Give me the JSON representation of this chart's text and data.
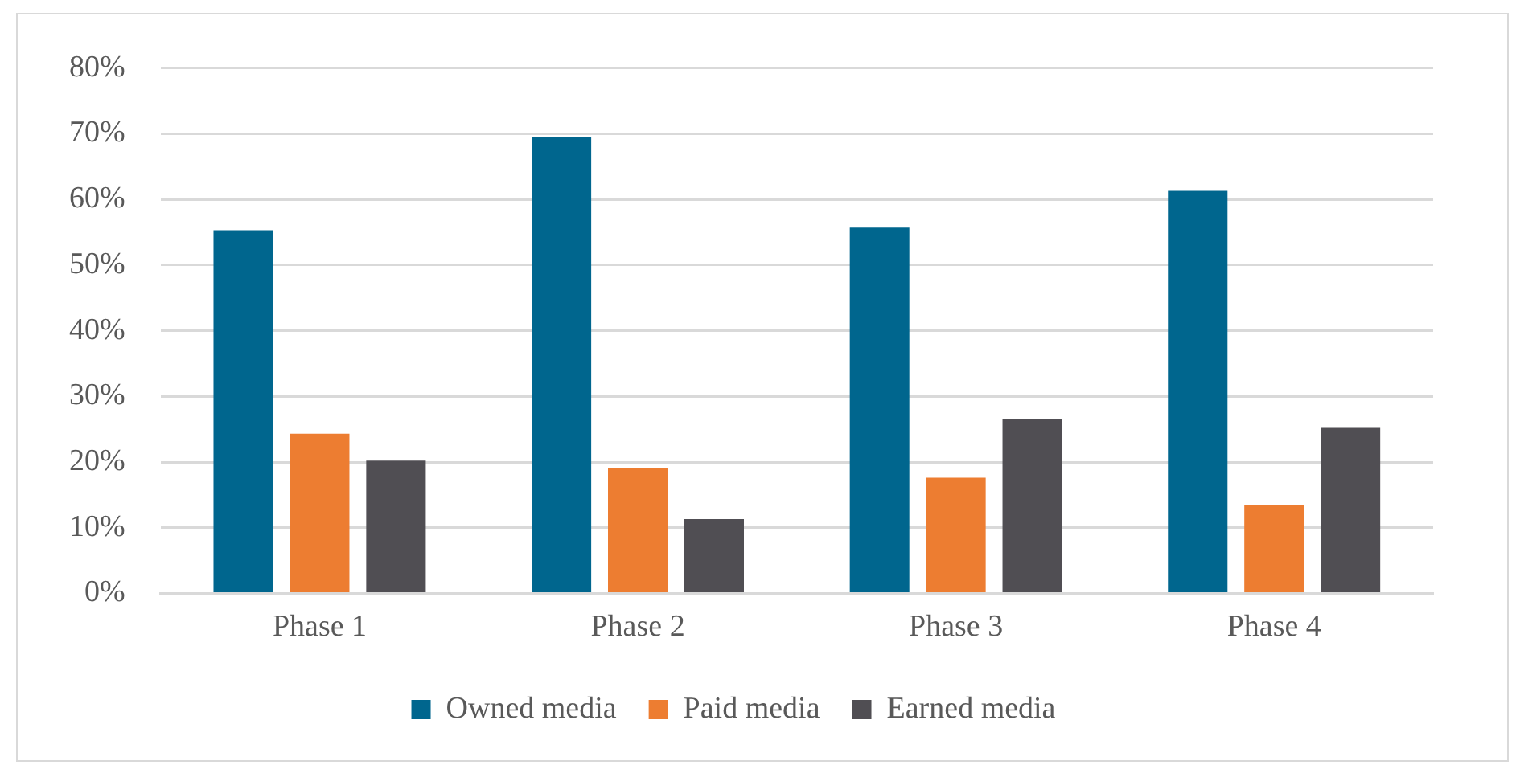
{
  "chart_data": {
    "type": "bar",
    "categories": [
      "Phase 1",
      "Phase 2",
      "Phase 3",
      "Phase 4"
    ],
    "series": [
      {
        "name": "Owned media",
        "color": "#00668e",
        "values": [
          55.3,
          69.5,
          55.7,
          61.3
        ]
      },
      {
        "name": "Paid media",
        "color": "#ed7d31",
        "values": [
          24.3,
          19.1,
          17.6,
          13.5
        ]
      },
      {
        "name": "Earned media",
        "color": "#504e53",
        "values": [
          20.2,
          11.3,
          26.5,
          25.2
        ]
      }
    ],
    "ylim": [
      0,
      80
    ],
    "yticks": [
      {
        "value": 0,
        "label": "0%"
      },
      {
        "value": 10,
        "label": "10%"
      },
      {
        "value": 20,
        "label": "20%"
      },
      {
        "value": 30,
        "label": "30%"
      },
      {
        "value": 40,
        "label": "40%"
      },
      {
        "value": 50,
        "label": "50%"
      },
      {
        "value": 60,
        "label": "60%"
      },
      {
        "value": 70,
        "label": "70%"
      },
      {
        "value": 80,
        "label": "80%"
      }
    ],
    "grid": "y",
    "legend": "bottom"
  }
}
